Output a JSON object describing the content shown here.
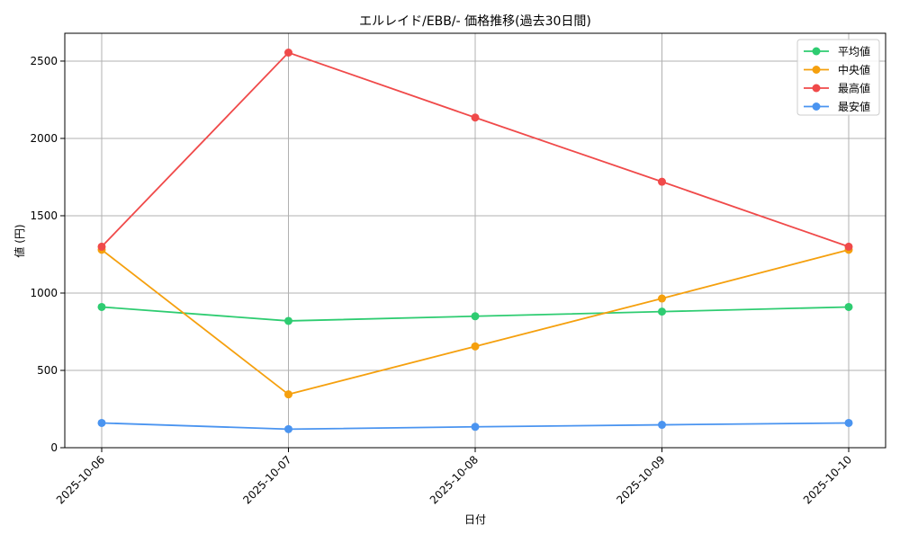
{
  "chart_data": {
    "type": "line",
    "title": "エルレイド/EBB/- 価格推移(過去30日間)",
    "xlabel": "日付",
    "ylabel": "値 (円)",
    "categories": [
      "2025-10-06",
      "2025-10-07",
      "2025-10-08",
      "2025-10-09",
      "2025-10-10"
    ],
    "series": [
      {
        "name": "平均値",
        "color": "#2ecc71",
        "values": [
          910,
          820,
          850,
          880,
          910
        ]
      },
      {
        "name": "中央値",
        "color": "#f5a00e",
        "values": [
          1280,
          345,
          655,
          965,
          1280
        ]
      },
      {
        "name": "最高値",
        "color": "#f04a4a",
        "values": [
          1300,
          2555,
          2135,
          1720,
          1300
        ]
      },
      {
        "name": "最安値",
        "color": "#4a94f0",
        "values": [
          160,
          120,
          135,
          148,
          160
        ]
      }
    ],
    "yticks": [
      0,
      500,
      1000,
      1500,
      2000,
      2500
    ],
    "ylim": [
      0,
      2680
    ],
    "grid": true,
    "legend_position": "top-right"
  }
}
